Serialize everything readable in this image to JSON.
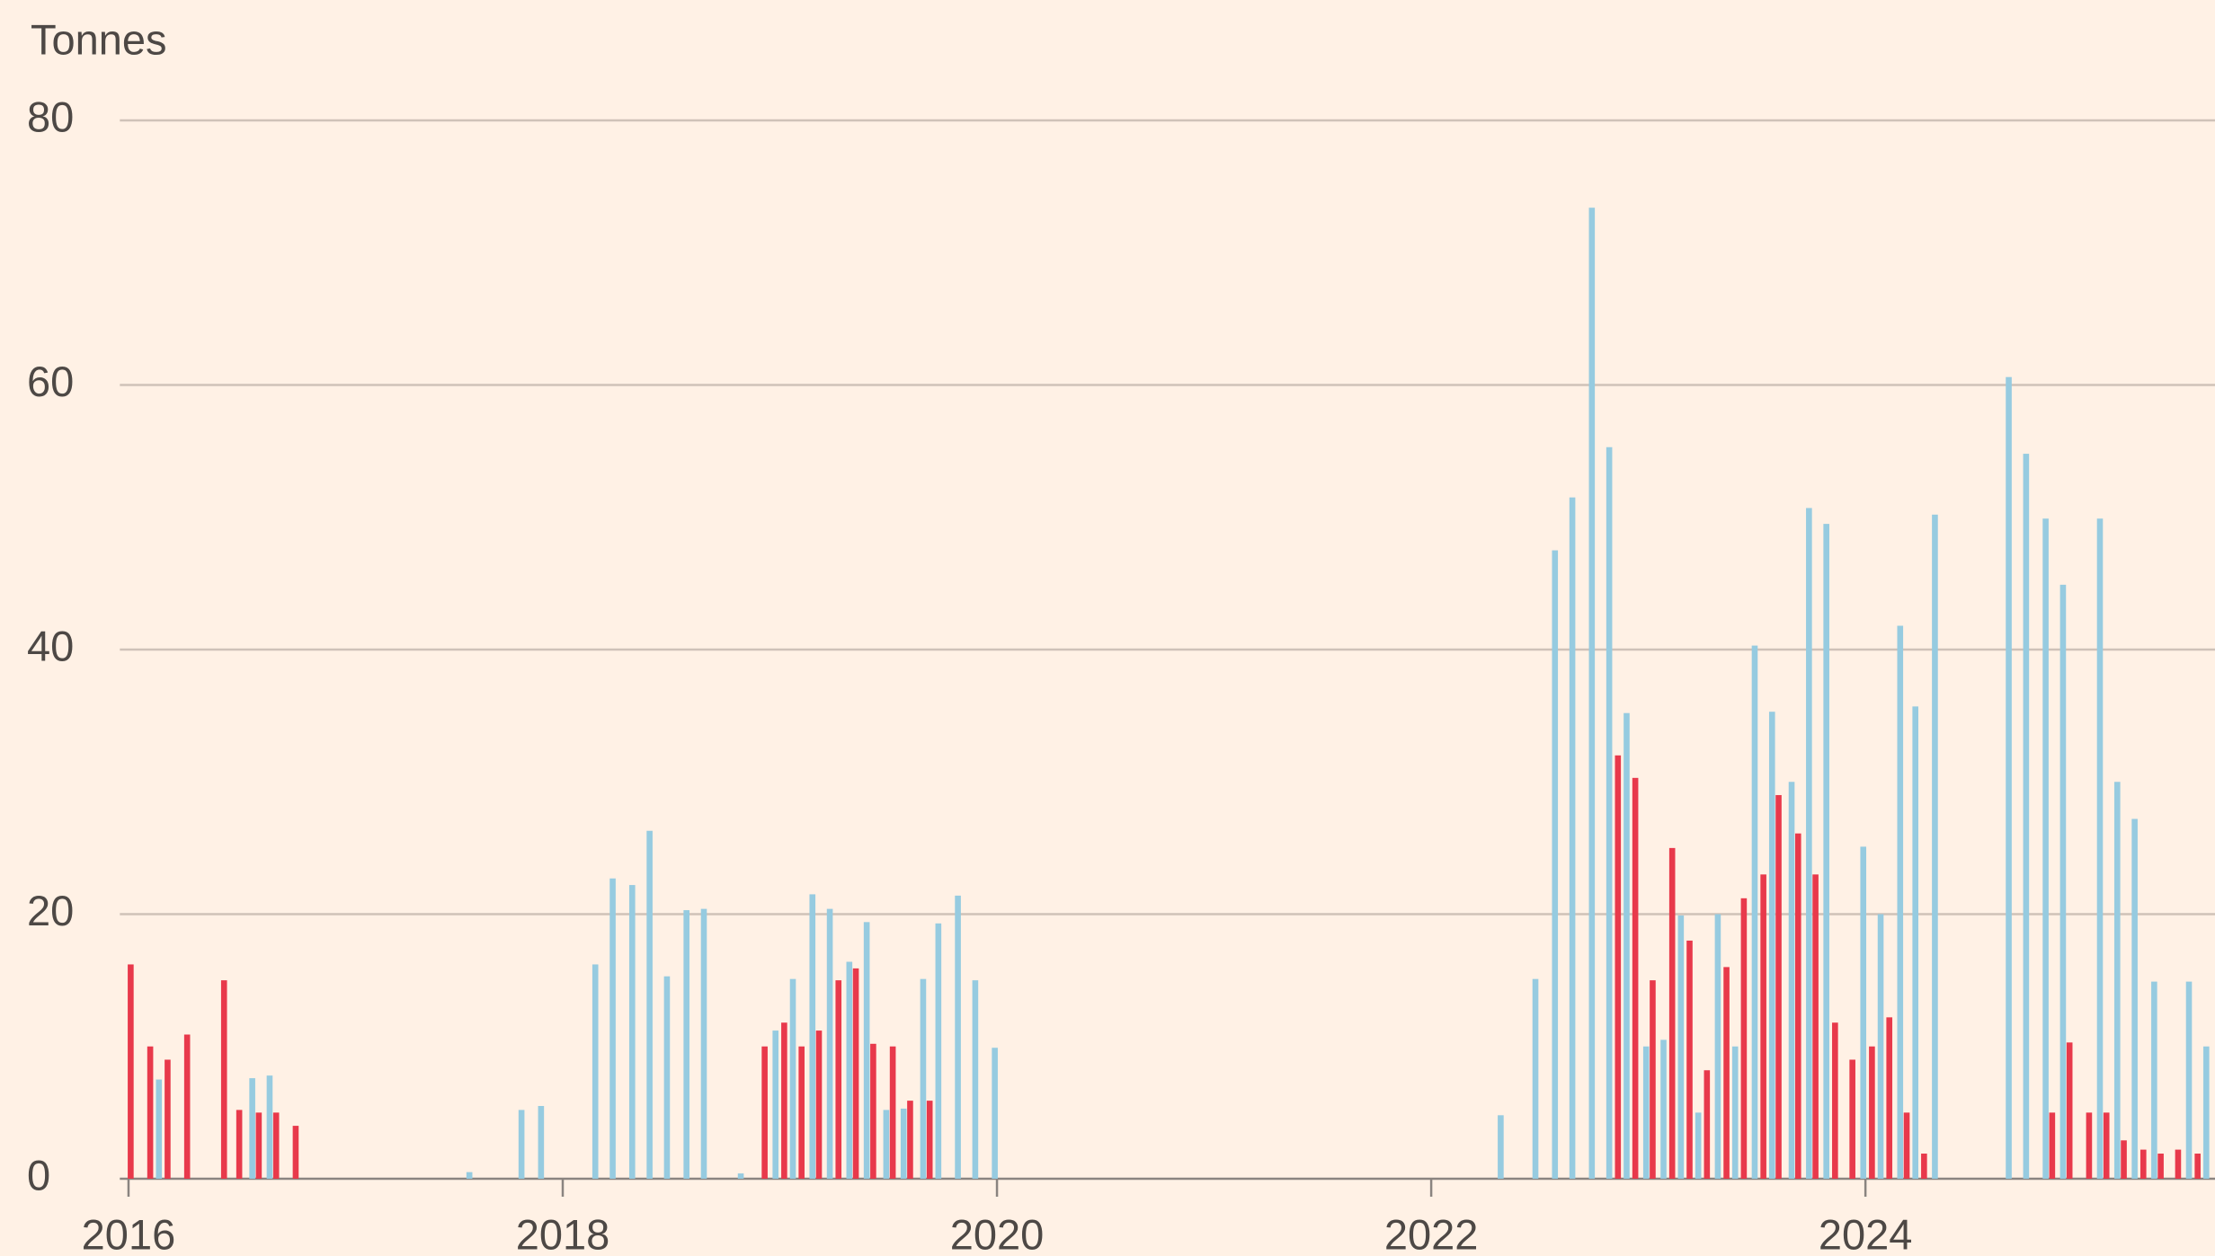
{
  "chart_data": {
    "type": "bar",
    "y_label": "Tonnes",
    "xlim": [
      2015.96,
      2025.61
    ],
    "xticks": [
      2016,
      2018,
      2020,
      2022,
      2024
    ],
    "ylim": [
      0,
      80
    ],
    "yticks": [
      0,
      20,
      40,
      60,
      80
    ],
    "grid": true,
    "series": [
      {
        "color": "#e8394b",
        "x": [
          2016.01,
          2016.1,
          2016.18,
          2016.27,
          2016.44,
          2016.51,
          2016.6,
          2016.68,
          2016.77,
          2018.93,
          2019.02,
          2019.1,
          2019.18,
          2019.27,
          2019.35,
          2019.43,
          2019.52,
          2019.6,
          2019.69,
          2022.86,
          2022.94,
          2023.02,
          2023.11,
          2023.19,
          2023.27,
          2023.36,
          2023.44,
          2023.53,
          2023.6,
          2023.69,
          2023.77,
          2023.86,
          2023.94,
          2024.03,
          2024.11,
          2024.19,
          2024.27,
          2024.86,
          2024.94,
          2025.03,
          2025.11,
          2025.19,
          2025.28,
          2025.36,
          2025.44,
          2025.53
        ],
        "values": [
          16.2,
          10,
          9,
          10.9,
          15,
          5.2,
          5,
          5,
          4,
          10,
          11.8,
          10,
          11.2,
          15,
          15.9,
          10.2,
          10,
          5.9,
          5.9,
          32,
          30.3,
          15,
          25,
          18,
          8.2,
          16,
          21.2,
          23,
          29,
          26.1,
          23,
          11.8,
          9,
          10,
          12.2,
          5,
          1.9,
          5,
          10.3,
          5,
          5,
          2.9,
          2.2,
          1.9,
          2.2,
          1.9
        ]
      },
      {
        "color": "#96cbe0",
        "x": [
          2016.14,
          2016.57,
          2016.65,
          2017.57,
          2017.81,
          2017.9,
          2018.15,
          2018.23,
          2018.32,
          2018.4,
          2018.48,
          2018.57,
          2018.65,
          2018.82,
          2018.98,
          2019.06,
          2019.15,
          2019.23,
          2019.32,
          2019.4,
          2019.49,
          2019.57,
          2019.66,
          2019.73,
          2019.82,
          2019.9,
          2019.99,
          2022.32,
          2022.48,
          2022.57,
          2022.65,
          2022.74,
          2022.82,
          2022.9,
          2022.99,
          2023.07,
          2023.15,
          2023.23,
          2023.32,
          2023.4,
          2023.49,
          2023.57,
          2023.66,
          2023.74,
          2023.82,
          2023.99,
          2024.07,
          2024.16,
          2024.23,
          2024.32,
          2024.66,
          2024.74,
          2024.83,
          2024.91,
          2025.08,
          2025.16,
          2025.24,
          2025.33,
          2025.49,
          2025.57
        ],
        "values": [
          7.5,
          7.6,
          7.8,
          0.5,
          5.2,
          5.5,
          16.2,
          22.7,
          22.2,
          26.3,
          15.3,
          20.3,
          20.4,
          0.4,
          11.2,
          15.1,
          21.5,
          20.4,
          16.4,
          19.4,
          5.2,
          5.3,
          15.1,
          19.3,
          21.4,
          15,
          9.9,
          4.8,
          15.1,
          47.5,
          51.5,
          73.4,
          55.3,
          35.2,
          10,
          10.5,
          19.9,
          5,
          20,
          10,
          40.3,
          35.3,
          30,
          50.7,
          49.5,
          25.1,
          20,
          41.8,
          35.7,
          50.2,
          60.6,
          54.8,
          49.9,
          44.9,
          49.9,
          30,
          27.2,
          14.9,
          14.9,
          10
        ]
      }
    ]
  }
}
